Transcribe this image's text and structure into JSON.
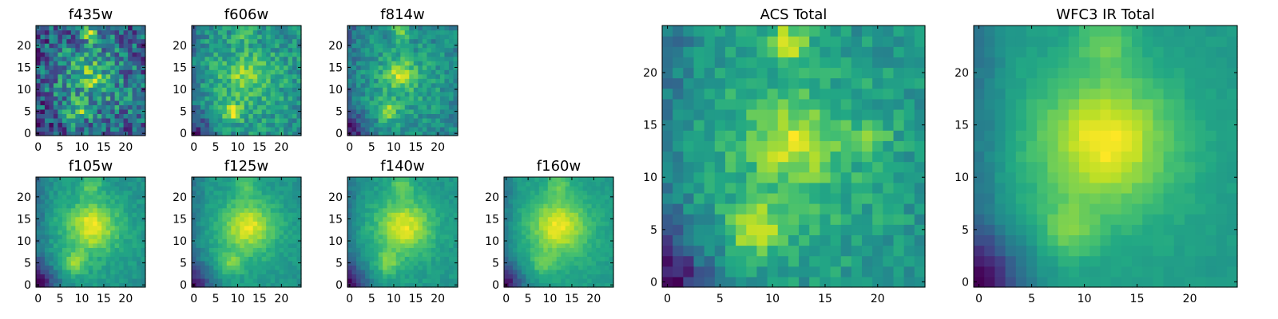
{
  "chart_data": [
    {
      "type": "heatmap",
      "title": "f435w",
      "xlim": [
        0,
        24
      ],
      "ylim": [
        0,
        24
      ],
      "xticks": [
        0,
        5,
        10,
        15,
        20
      ],
      "yticks": [
        0,
        5,
        10,
        15,
        20
      ],
      "colormap": "viridis",
      "noise": 0.7,
      "seed": 11,
      "blobs": [
        [
          11.5,
          23.0,
          1.3,
          0.6
        ],
        [
          9.0,
          5.0,
          1.4,
          0.5
        ],
        [
          12.0,
          13.5,
          2.5,
          0.3
        ]
      ],
      "dark_corner": 0.2
    },
    {
      "type": "heatmap",
      "title": "f606w",
      "xlim": [
        0,
        24
      ],
      "ylim": [
        0,
        24
      ],
      "xticks": [
        0,
        5,
        10,
        15,
        20
      ],
      "yticks": [
        0,
        5,
        10,
        15,
        20
      ],
      "colormap": "viridis",
      "noise": 0.55,
      "seed": 23,
      "blobs": [
        [
          11.5,
          23.0,
          1.3,
          0.5
        ],
        [
          8.5,
          5.0,
          1.5,
          0.7
        ],
        [
          12.0,
          13.5,
          2.5,
          0.35
        ]
      ],
      "dark_corner": 0.5
    },
    {
      "type": "heatmap",
      "title": "f814w",
      "xlim": [
        0,
        24
      ],
      "ylim": [
        0,
        24
      ],
      "xticks": [
        0,
        5,
        10,
        15,
        20
      ],
      "yticks": [
        0,
        5,
        10,
        15,
        20
      ],
      "colormap": "viridis",
      "noise": 0.5,
      "seed": 37,
      "blobs": [
        [
          11.5,
          23.0,
          1.4,
          0.6
        ],
        [
          8.5,
          5.0,
          1.6,
          0.7
        ],
        [
          11.5,
          13.5,
          2.2,
          0.6
        ]
      ],
      "dark_corner": 0.6
    },
    {
      "type": "heatmap",
      "title": "f105w",
      "xlim": [
        0,
        24
      ],
      "ylim": [
        0,
        24
      ],
      "xticks": [
        0,
        5,
        10,
        15,
        20
      ],
      "yticks": [
        0,
        5,
        10,
        15,
        20
      ],
      "colormap": "viridis",
      "noise": 0.3,
      "seed": 41,
      "blobs": [
        [
          12.0,
          23.0,
          1.8,
          0.5
        ],
        [
          8.5,
          5.0,
          1.8,
          0.6
        ],
        [
          12.5,
          13.5,
          3.5,
          0.8
        ]
      ],
      "dark_corner": 0.9
    },
    {
      "type": "heatmap",
      "title": "f125w",
      "xlim": [
        0,
        24
      ],
      "ylim": [
        0,
        24
      ],
      "xticks": [
        0,
        5,
        10,
        15,
        20
      ],
      "yticks": [
        0,
        5,
        10,
        15,
        20
      ],
      "colormap": "viridis",
      "noise": 0.28,
      "seed": 53,
      "blobs": [
        [
          12.0,
          23.0,
          1.8,
          0.45
        ],
        [
          8.5,
          5.0,
          1.8,
          0.55
        ],
        [
          12.5,
          13.5,
          3.8,
          0.85
        ]
      ],
      "dark_corner": 0.9
    },
    {
      "type": "heatmap",
      "title": "f140w",
      "xlim": [
        0,
        24
      ],
      "ylim": [
        0,
        24
      ],
      "xticks": [
        0,
        5,
        10,
        15,
        20
      ],
      "yticks": [
        0,
        5,
        10,
        15,
        20
      ],
      "colormap": "viridis",
      "noise": 0.28,
      "seed": 67,
      "blobs": [
        [
          12.0,
          23.0,
          1.8,
          0.55
        ],
        [
          8.5,
          5.0,
          1.8,
          0.6
        ],
        [
          12.5,
          13.5,
          3.8,
          0.9
        ]
      ],
      "dark_corner": 1.0
    },
    {
      "type": "heatmap",
      "title": "f160w",
      "xlim": [
        0,
        24
      ],
      "ylim": [
        0,
        24
      ],
      "xticks": [
        0,
        5,
        10,
        15,
        20
      ],
      "yticks": [
        0,
        5,
        10,
        15,
        20
      ],
      "colormap": "viridis",
      "noise": 0.25,
      "seed": 79,
      "blobs": [
        [
          12.0,
          23.0,
          1.8,
          0.5
        ],
        [
          8.5,
          5.0,
          1.8,
          0.55
        ],
        [
          12.0,
          13.5,
          4.0,
          1.0
        ]
      ],
      "dark_corner": 1.1
    },
    {
      "type": "heatmap",
      "title": "ACS Total",
      "xlim": [
        0,
        24
      ],
      "ylim": [
        0,
        24
      ],
      "xticks": [
        0,
        5,
        10,
        15,
        20
      ],
      "yticks": [
        0,
        5,
        10,
        15,
        20
      ],
      "colormap": "viridis",
      "noise": 0.4,
      "seed": 97,
      "blobs": [
        [
          11.5,
          23.0,
          1.5,
          0.65
        ],
        [
          8.5,
          5.0,
          1.6,
          0.75
        ],
        [
          12.0,
          13.5,
          2.6,
          0.5
        ],
        [
          19.5,
          14.0,
          1.2,
          0.3
        ]
      ],
      "dark_corner": 0.7
    },
    {
      "type": "heatmap",
      "title": "WFC3 IR Total",
      "xlim": [
        0,
        24
      ],
      "ylim": [
        0,
        24
      ],
      "xticks": [
        0,
        5,
        10,
        15,
        20
      ],
      "yticks": [
        0,
        5,
        10,
        15,
        20
      ],
      "colormap": "viridis",
      "noise": 0.15,
      "seed": 113,
      "blobs": [
        [
          12.0,
          23.0,
          1.9,
          0.5
        ],
        [
          8.5,
          5.0,
          1.8,
          0.55
        ],
        [
          12.0,
          13.5,
          4.0,
          1.0
        ]
      ],
      "dark_corner": 1.15
    }
  ]
}
